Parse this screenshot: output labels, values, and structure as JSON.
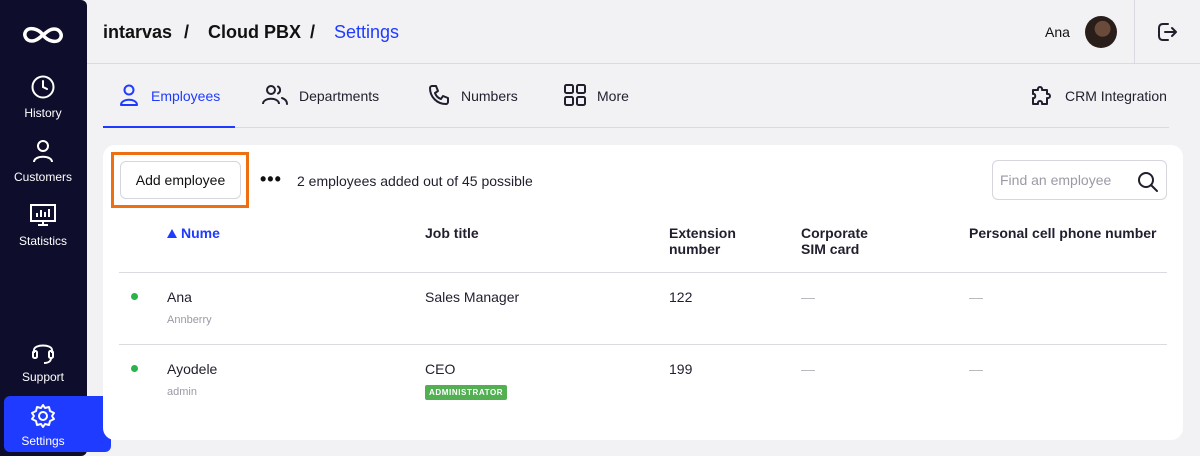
{
  "sidebar": {
    "items": [
      {
        "label": "History",
        "icon": "clock-icon"
      },
      {
        "label": "Customers",
        "icon": "person-icon"
      },
      {
        "label": "Statistics",
        "icon": "chart-board-icon"
      },
      {
        "label": "Support",
        "icon": "headset-icon"
      },
      {
        "label": "Settings",
        "icon": "gear-icon",
        "active": true
      }
    ],
    "logo_icon": "infinity-logo-icon",
    "active_color": "#1f3bff",
    "background": "#0e0e2c"
  },
  "header": {
    "breadcrumb": [
      "intarvas",
      "Cloud PBX",
      "Settings"
    ],
    "separator": "/",
    "user_name": "Ana",
    "logout_icon": "logout-icon"
  },
  "tabs": [
    {
      "label": "Employees",
      "icon": "person-outline-icon",
      "active": true
    },
    {
      "label": "Departments",
      "icon": "people-icon"
    },
    {
      "label": "Numbers",
      "icon": "phone-icon"
    },
    {
      "label": "More",
      "icon": "grid-icon"
    },
    {
      "label": "CRM Integration",
      "icon": "puzzle-icon"
    }
  ],
  "toolbar": {
    "add_label": "Add employee",
    "more_label": "•••",
    "count_text": "2 employees added out of 45 possible",
    "search_placeholder": "Find an employee",
    "highlight_color": "#ee6f12"
  },
  "table": {
    "headers": {
      "name": "Nume",
      "job": "Job title",
      "ext": "Extension number",
      "sim": "Corporate SIM card",
      "personal": "Personal cell phone number"
    },
    "rows": [
      {
        "name": "Ana",
        "sub": "Annberry",
        "job": "Sales Manager",
        "badge": "",
        "ext": "122",
        "sim": "—",
        "personal": "—",
        "status_color": "#2bb24c"
      },
      {
        "name": "Ayodele",
        "sub": "admin",
        "job": "CEO",
        "badge": "ADMINISTRATOR",
        "ext": "199",
        "sim": "—",
        "personal": "—",
        "status_color": "#2bb24c"
      }
    ]
  }
}
